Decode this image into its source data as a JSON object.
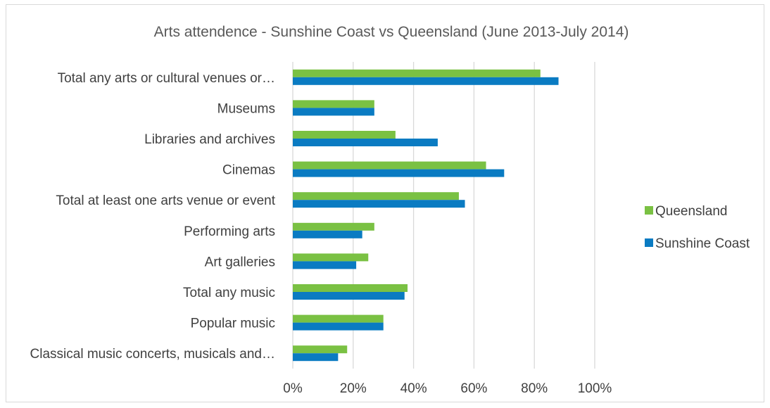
{
  "chart_data": {
    "type": "bar",
    "orientation": "horizontal",
    "title": "Arts attendence - Sunshine Coast vs Queensland (June 2013-July 2014)",
    "xlabel": "",
    "ylabel": "",
    "categories": [
      "Total any arts or cultural venues or…",
      "Museums",
      "Libraries and archives",
      "Cinemas",
      "Total at least one arts venue or event",
      "Performing arts",
      "Art galleries",
      "Total any music",
      "Popular music",
      "Classical music concerts, musicals and…"
    ],
    "series": [
      {
        "name": "Queensland",
        "color": "#7ac143",
        "values": [
          82,
          27,
          34,
          64,
          55,
          27,
          25,
          38,
          30,
          18
        ]
      },
      {
        "name": "Sunshine Coast",
        "color": "#0a7bc2",
        "values": [
          88,
          27,
          48,
          70,
          57,
          23,
          21,
          37,
          30,
          15
        ]
      }
    ],
    "xlim": [
      0,
      100
    ],
    "x_ticks": [
      "0%",
      "20%",
      "40%",
      "60%",
      "80%",
      "100%"
    ],
    "grid": "vertical",
    "legend_position": "right"
  }
}
